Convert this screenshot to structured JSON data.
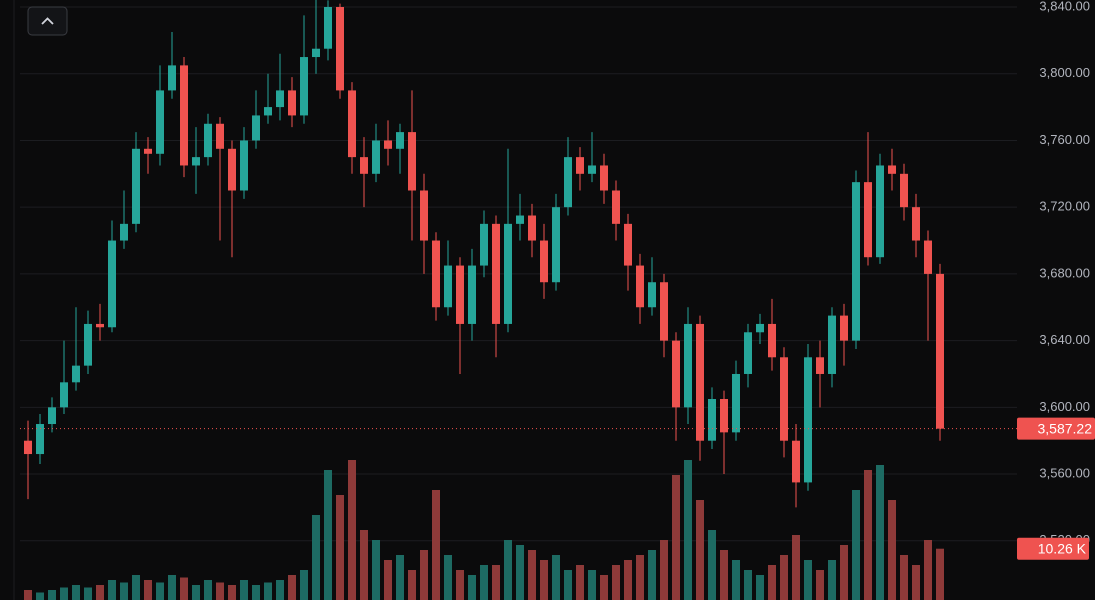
{
  "chart_data": {
    "type": "candlestick",
    "up_color": "#26a69a",
    "down_color": "#ef5350",
    "volume_up_color": "#1d6b63",
    "volume_down_color": "#8e3a39",
    "grid": true,
    "ylim": [
      3484.5,
      3844.2
    ],
    "yticks": [
      {
        "value": 3520,
        "label": "3,520.00"
      },
      {
        "value": 3560,
        "label": "3,560.00"
      },
      {
        "value": 3600,
        "label": "3,600.00"
      },
      {
        "value": 3640,
        "label": "3,640.00"
      },
      {
        "value": 3680,
        "label": "3,680.00"
      },
      {
        "value": 3720,
        "label": "3,720.00"
      },
      {
        "value": 3760,
        "label": "3,760.00"
      },
      {
        "value": 3800,
        "label": "3,800.00"
      },
      {
        "value": 3840,
        "label": "3,840.00"
      }
    ],
    "open": [
      3580,
      3572,
      3590,
      3600,
      3615,
      3625,
      3650,
      3648,
      3700,
      3710,
      3755,
      3752,
      3790,
      3805,
      3745,
      3750,
      3770,
      3755,
      3730,
      3760,
      3775,
      3780,
      3790,
      3775,
      3810,
      3815,
      3840,
      3790,
      3750,
      3740,
      3760,
      3755,
      3765,
      3730,
      3700,
      3660,
      3685,
      3650,
      3685,
      3710,
      3650,
      3710,
      3715,
      3700,
      3675,
      3720,
      3750,
      3740,
      3745,
      3730,
      3710,
      3685,
      3660,
      3675,
      3640,
      3600,
      3650,
      3580,
      3605,
      3585,
      3620,
      3645,
      3650,
      3630,
      3580,
      3555,
      3630,
      3620,
      3655,
      3640,
      3735,
      3690,
      3745,
      3740,
      3720,
      3700,
      3680
    ],
    "high": [
      3592,
      3596,
      3606,
      3640,
      3660,
      3658,
      3662,
      3712,
      3730,
      3765,
      3762,
      3805,
      3825,
      3810,
      3768,
      3776,
      3774,
      3760,
      3768,
      3790,
      3800,
      3812,
      3798,
      3835,
      3845,
      3844,
      3842,
      3795,
      3762,
      3770,
      3772,
      3770,
      3790,
      3740,
      3705,
      3700,
      3690,
      3695,
      3718,
      3715,
      3755,
      3728,
      3722,
      3710,
      3728,
      3762,
      3756,
      3765,
      3752,
      3736,
      3716,
      3692,
      3690,
      3680,
      3645,
      3660,
      3655,
      3612,
      3610,
      3628,
      3650,
      3656,
      3665,
      3636,
      3590,
      3638,
      3640,
      3660,
      3662,
      3742,
      3765,
      3752,
      3755,
      3746,
      3728,
      3706,
      3686
    ],
    "low": [
      3545,
      3566,
      3585,
      3596,
      3610,
      3620,
      3640,
      3645,
      3695,
      3705,
      3740,
      3745,
      3785,
      3738,
      3728,
      3745,
      3700,
      3690,
      3725,
      3755,
      3770,
      3772,
      3768,
      3770,
      3800,
      3808,
      3785,
      3740,
      3720,
      3735,
      3745,
      3740,
      3700,
      3680,
      3652,
      3655,
      3620,
      3640,
      3678,
      3630,
      3645,
      3700,
      3690,
      3665,
      3670,
      3715,
      3730,
      3735,
      3722,
      3700,
      3670,
      3650,
      3655,
      3630,
      3580,
      3590,
      3568,
      3575,
      3560,
      3580,
      3612,
      3638,
      3622,
      3570,
      3540,
      3550,
      3600,
      3612,
      3625,
      3635,
      3685,
      3686,
      3730,
      3712,
      3690,
      3640,
      3580
    ],
    "close": [
      3572,
      3590,
      3600,
      3615,
      3625,
      3650,
      3648,
      3700,
      3710,
      3755,
      3752,
      3790,
      3805,
      3745,
      3750,
      3770,
      3755,
      3730,
      3760,
      3775,
      3780,
      3790,
      3775,
      3810,
      3815,
      3840,
      3790,
      3750,
      3740,
      3760,
      3755,
      3765,
      3730,
      3700,
      3660,
      3685,
      3650,
      3685,
      3710,
      3650,
      3710,
      3715,
      3700,
      3675,
      3720,
      3750,
      3740,
      3745,
      3730,
      3710,
      3685,
      3660,
      3675,
      3640,
      3600,
      3650,
      3580,
      3605,
      3585,
      3620,
      3645,
      3650,
      3630,
      3580,
      3555,
      3630,
      3620,
      3655,
      3640,
      3735,
      3690,
      3745,
      3740,
      3720,
      3700,
      3680,
      3587.22
    ],
    "volume": [
      2,
      1.5,
      2,
      2.5,
      3,
      2.5,
      3,
      4,
      3.5,
      5,
      4,
      3.5,
      5,
      4.5,
      3,
      4,
      3.5,
      3,
      4,
      3,
      3.5,
      4,
      5,
      6,
      17,
      26,
      21,
      28,
      14,
      12,
      8,
      9,
      6,
      10,
      22,
      9,
      6,
      5,
      7,
      7,
      12,
      11,
      10,
      8,
      9,
      6,
      7,
      6,
      5,
      7,
      8,
      9,
      10,
      12,
      25,
      28,
      20,
      14,
      10,
      8,
      6,
      5,
      7,
      9,
      13,
      8,
      6,
      8,
      11,
      22,
      26,
      27,
      20,
      9,
      7,
      12,
      10.26
    ],
    "last_price_label": "3,587.22",
    "last_volume_label": "10.26 K"
  }
}
